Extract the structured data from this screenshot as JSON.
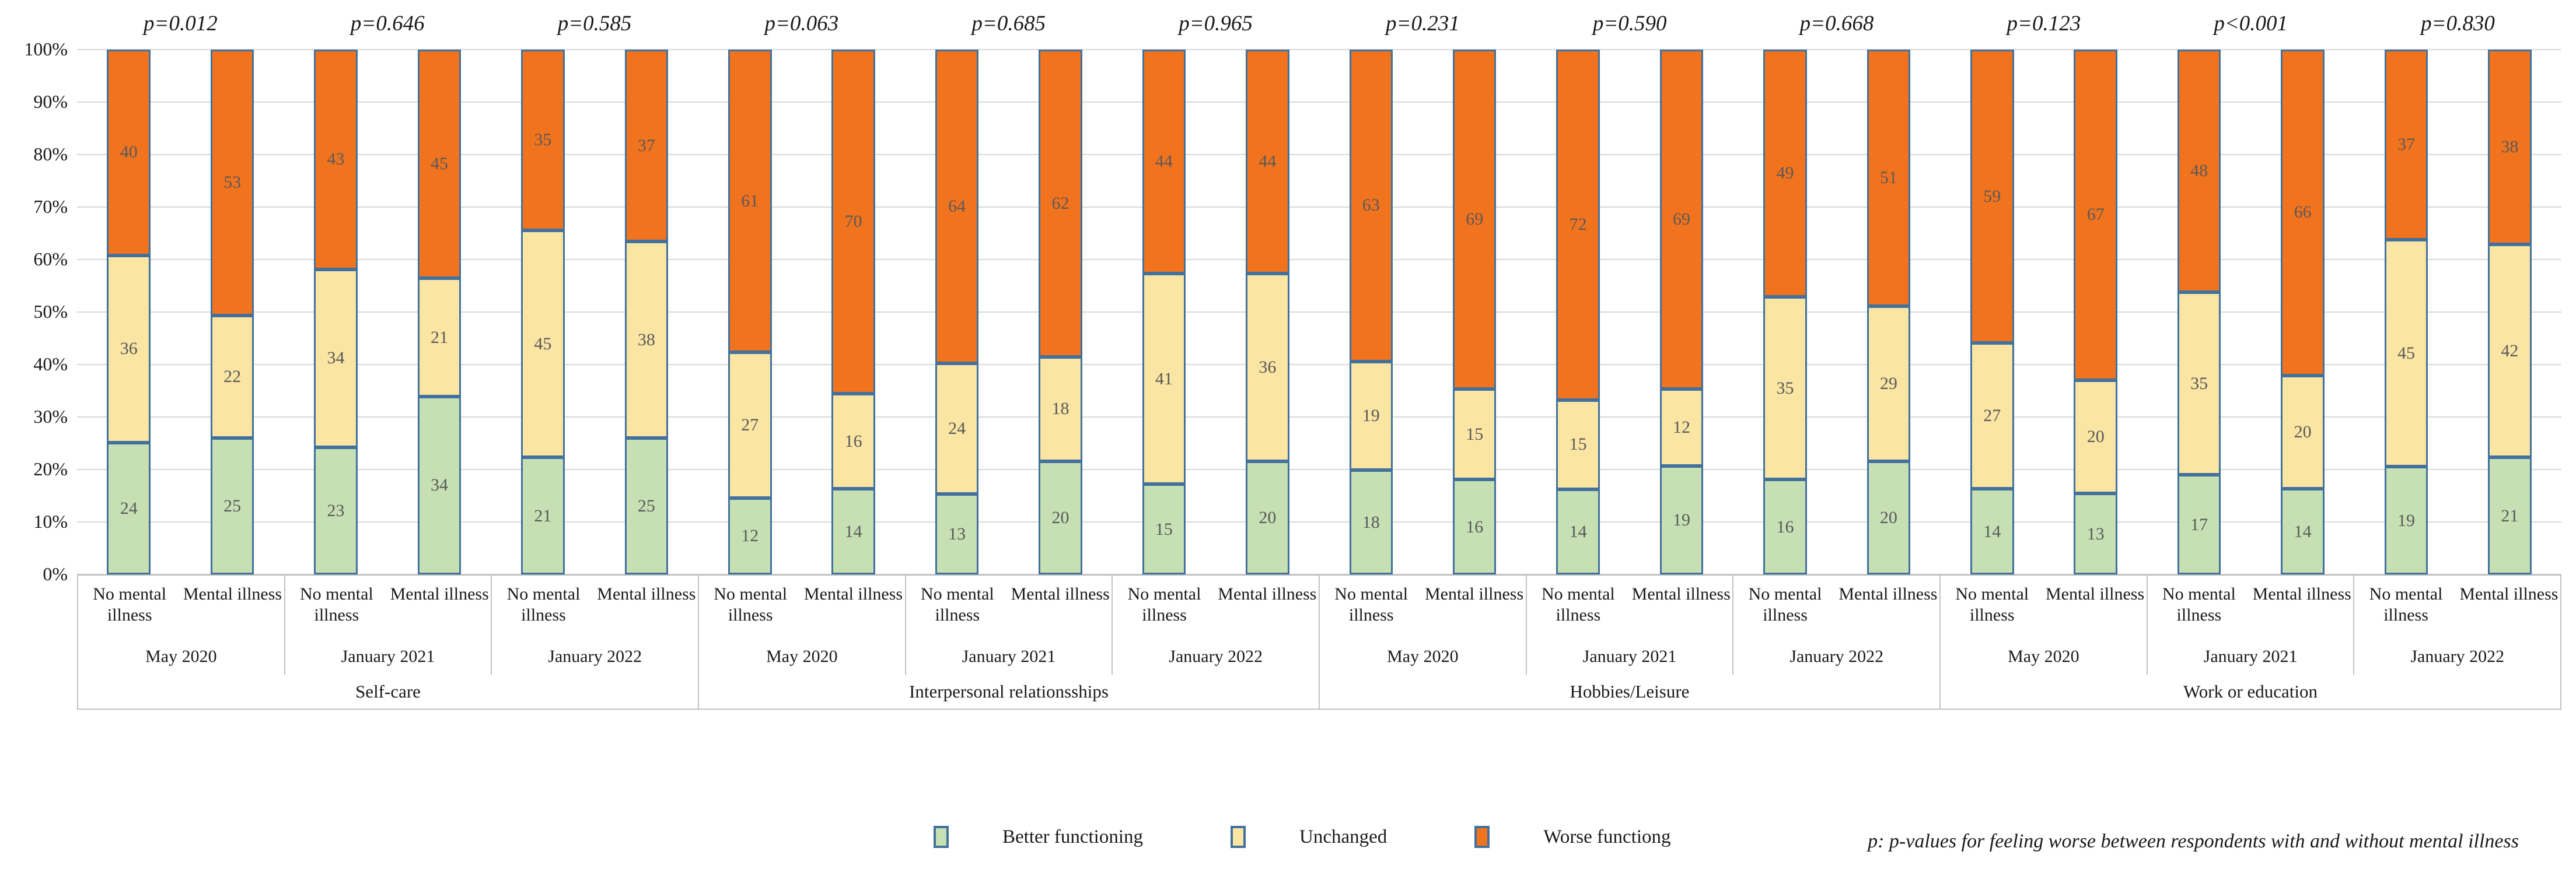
{
  "chart_data": {
    "type": "bar",
    "stacked": true,
    "units": "percent",
    "ylim": [
      0,
      100
    ],
    "grid": true,
    "legend_position": "bottom",
    "y_ticks": [
      "0%",
      "10%",
      "20%",
      "30%",
      "40%",
      "50%",
      "60%",
      "70%",
      "80%",
      "90%",
      "100%"
    ],
    "series_meta": [
      {
        "key": "better",
        "label": "Better functioning",
        "color": "#c6e0b4"
      },
      {
        "key": "unchanged",
        "label": "Unchanged",
        "color": "#fbe5a3"
      },
      {
        "key": "worse",
        "label": "Worse functiong",
        "color": "#f2731e"
      }
    ],
    "bar_border_color": "#41719c",
    "footnote": "p: p-values for feeling worse between respondents with and without mental illness",
    "group_labels": [
      "No mental illness",
      "Mental illness"
    ],
    "sections": [
      {
        "label": "Self-care",
        "groups": [
          {
            "time": "May 2020",
            "p_value": "p=0.012",
            "bars": [
              {
                "label": "No mental illness",
                "better": 24,
                "unchanged": 36,
                "worse": 40
              },
              {
                "label": "Mental illness",
                "better": 25,
                "unchanged": 22,
                "worse": 53
              }
            ]
          },
          {
            "time": "January 2021",
            "p_value": "p=0.646",
            "bars": [
              {
                "label": "No mental illness",
                "better": 23,
                "unchanged": 34,
                "worse": 43
              },
              {
                "label": "Mental illness",
                "better": 34,
                "unchanged": 21,
                "worse": 45
              }
            ]
          },
          {
            "time": "January 2022",
            "p_value": "p=0.585",
            "bars": [
              {
                "label": "No mental illness",
                "better": 21,
                "unchanged": 45,
                "worse": 35
              },
              {
                "label": "Mental illness",
                "better": 25,
                "unchanged": 38,
                "worse": 37
              }
            ]
          }
        ]
      },
      {
        "label": "Interpersonal relationsships",
        "groups": [
          {
            "time": "May 2020",
            "p_value": "p=0.063",
            "bars": [
              {
                "label": "No mental illness",
                "better": 12,
                "unchanged": 27,
                "worse": 61
              },
              {
                "label": "Mental illness",
                "better": 14,
                "unchanged": 16,
                "worse": 70
              }
            ]
          },
          {
            "time": "January 2021",
            "p_value": "p=0.685",
            "bars": [
              {
                "label": "No mental illness",
                "better": 13,
                "unchanged": 24,
                "worse": 64
              },
              {
                "label": "Mental illness",
                "better": 20,
                "unchanged": 18,
                "worse": 62
              }
            ]
          },
          {
            "time": "January 2022",
            "p_value": "p=0.965",
            "bars": [
              {
                "label": "No mental illness",
                "better": 15,
                "unchanged": 41,
                "worse": 44
              },
              {
                "label": "Mental illness",
                "better": 20,
                "unchanged": 36,
                "worse": 44
              }
            ]
          }
        ]
      },
      {
        "label": "Hobbies/Leisure",
        "groups": [
          {
            "time": "May 2020",
            "p_value": "p=0.231",
            "bars": [
              {
                "label": "No mental illness",
                "better": 18,
                "unchanged": 19,
                "worse": 63
              },
              {
                "label": "Mental illness",
                "better": 16,
                "unchanged": 15,
                "worse": 69
              }
            ]
          },
          {
            "time": "January 2021",
            "p_value": "p=0.590",
            "bars": [
              {
                "label": "No mental illness",
                "better": 14,
                "unchanged": 15,
                "worse": 72
              },
              {
                "label": "Mental illness",
                "better": 19,
                "unchanged": 12,
                "worse": 69
              }
            ]
          },
          {
            "time": "January 2022",
            "p_value": "p=0.668",
            "bars": [
              {
                "label": "No mental illness",
                "better": 16,
                "unchanged": 35,
                "worse": 49
              },
              {
                "label": "Mental illness",
                "better": 20,
                "unchanged": 29,
                "worse": 51
              }
            ]
          }
        ]
      },
      {
        "label": "Work or education",
        "groups": [
          {
            "time": "May 2020",
            "p_value": "p=0.123",
            "bars": [
              {
                "label": "No mental illness",
                "better": 14,
                "unchanged": 27,
                "worse": 59
              },
              {
                "label": "Mental illness",
                "better": 13,
                "unchanged": 20,
                "worse": 67
              }
            ]
          },
          {
            "time": "January 2021",
            "p_value": "p<0.001",
            "bars": [
              {
                "label": "No mental illness",
                "better": 17,
                "unchanged": 35,
                "worse": 48
              },
              {
                "label": "Mental illness",
                "better": 14,
                "unchanged": 20,
                "worse": 66
              }
            ]
          },
          {
            "time": "January 2022",
            "p_value": "p=0.830",
            "bars": [
              {
                "label": "No mental illness",
                "better": 19,
                "unchanged": 45,
                "worse": 37
              },
              {
                "label": "Mental illness",
                "better": 21,
                "unchanged": 42,
                "worse": 38
              }
            ]
          }
        ]
      }
    ]
  }
}
